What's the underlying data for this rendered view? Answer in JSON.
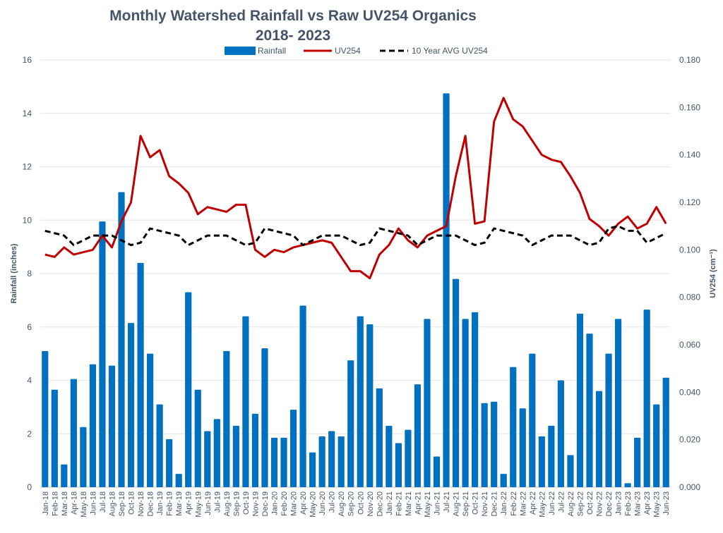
{
  "chart_data": {
    "type": "bar+line",
    "title": "Monthly Watershed Rainfall vs Raw UV254 Organics",
    "subtitle": "2018- 2023",
    "ylabel": "Rainfall (inches)",
    "y2label": "UV254 (cm⁻¹)",
    "ylim": [
      0,
      16
    ],
    "yticks": [
      "0",
      "2",
      "4",
      "6",
      "8",
      "10",
      "12",
      "14",
      "16"
    ],
    "y2lim": [
      0,
      0.18
    ],
    "y2ticks": [
      "0.000",
      "0.020",
      "0.040",
      "0.060",
      "0.080",
      "0.100",
      "0.120",
      "0.140",
      "0.160",
      "0.180"
    ],
    "grid": true,
    "legend_placement": "top",
    "categories": [
      "Jan-18",
      "Feb-18",
      "Mar-18",
      "Apr-18",
      "May-18",
      "Jun-18",
      "Jul-18",
      "Aug-18",
      "Sep-18",
      "Oct-18",
      "Nov-18",
      "Dec-18",
      "Jan-19",
      "Feb-19",
      "Mar-19",
      "Apr-19",
      "May-19",
      "Jun-19",
      "Jul-19",
      "Aug-19",
      "Sep-19",
      "Oct-19",
      "Nov-19",
      "Dec-19",
      "Jan-20",
      "Feb-20",
      "Mar-20",
      "Apr-20",
      "May-20",
      "Jun-20",
      "Jul-20",
      "Aug-20",
      "Sep-20",
      "Oct-20",
      "Nov-20",
      "Dec-20",
      "Jan-21",
      "Feb-21",
      "Mar-21",
      "Apr-21",
      "May-21",
      "Jun-21",
      "Jul-21",
      "Aug-21",
      "Sep-21",
      "Oct-21",
      "Nov-21",
      "Dec-21",
      "Jan-22",
      "Feb-22",
      "Mar-22",
      "Apr-22",
      "May-22",
      "Jun-22",
      "Jul-22",
      "Aug-22",
      "Sep-22",
      "Oct-22",
      "Nov-22",
      "Dec-22",
      "Jan-23",
      "Feb-23",
      "Mar-23",
      "Apr-23",
      "May-23",
      "Jun-23"
    ],
    "series": [
      {
        "name": "Rainfall",
        "type": "bar",
        "axis": "left",
        "color": "#0070C0",
        "values": [
          5.1,
          3.65,
          0.85,
          4.05,
          2.25,
          4.6,
          9.95,
          4.55,
          11.05,
          6.15,
          8.4,
          5.0,
          3.1,
          1.8,
          0.5,
          7.3,
          3.65,
          2.1,
          2.55,
          5.1,
          2.3,
          6.4,
          2.75,
          5.2,
          1.85,
          1.85,
          2.9,
          6.8,
          1.3,
          1.9,
          2.1,
          1.9,
          4.75,
          6.4,
          6.1,
          3.7,
          2.3,
          1.65,
          2.15,
          3.85,
          6.3,
          1.15,
          14.75,
          7.8,
          6.3,
          6.55,
          3.15,
          3.2,
          0.5,
          4.5,
          2.95,
          5.0,
          1.9,
          2.3,
          4.0,
          1.2,
          6.5,
          5.75,
          3.6,
          5.0,
          6.3,
          0.15,
          1.85,
          6.65,
          3.1,
          4.1
        ]
      },
      {
        "name": "UV254",
        "type": "line",
        "axis": "right",
        "color": "#C00000",
        "values": [
          0.098,
          0.097,
          0.101,
          0.098,
          0.099,
          0.1,
          0.106,
          0.101,
          0.112,
          0.12,
          0.148,
          0.139,
          0.142,
          0.131,
          0.128,
          0.124,
          0.115,
          0.118,
          0.117,
          0.116,
          0.119,
          0.119,
          0.1,
          0.097,
          0.1,
          0.099,
          0.101,
          0.102,
          0.103,
          0.104,
          0.103,
          0.097,
          0.091,
          0.091,
          0.088,
          0.098,
          0.102,
          0.109,
          0.104,
          0.101,
          0.106,
          0.108,
          0.11,
          0.131,
          0.148,
          0.111,
          0.112,
          0.154,
          0.164,
          0.155,
          0.152,
          0.146,
          0.14,
          0.138,
          0.137,
          0.131,
          0.124,
          0.113,
          0.11,
          0.106,
          0.111,
          0.114,
          0.109,
          0.111,
          0.118,
          0.111
        ]
      },
      {
        "name": "10 Year AVG UV254",
        "type": "line",
        "dash": true,
        "axis": "right",
        "color": "#000000",
        "values": [
          0.108,
          0.107,
          0.106,
          0.102,
          0.104,
          0.106,
          0.106,
          0.106,
          0.104,
          0.102,
          0.103,
          0.109,
          0.108,
          0.107,
          0.106,
          0.102,
          0.104,
          0.106,
          0.106,
          0.106,
          0.104,
          0.102,
          0.103,
          0.109,
          0.108,
          0.107,
          0.106,
          0.102,
          0.104,
          0.106,
          0.106,
          0.106,
          0.104,
          0.102,
          0.103,
          0.109,
          0.108,
          0.107,
          0.106,
          0.102,
          0.104,
          0.106,
          0.106,
          0.106,
          0.104,
          0.102,
          0.103,
          0.109,
          0.108,
          0.107,
          0.106,
          0.102,
          0.104,
          0.106,
          0.106,
          0.106,
          0.104,
          0.102,
          0.103,
          0.109,
          0.11,
          0.108,
          0.108,
          0.103,
          0.105,
          0.107
        ]
      }
    ]
  }
}
